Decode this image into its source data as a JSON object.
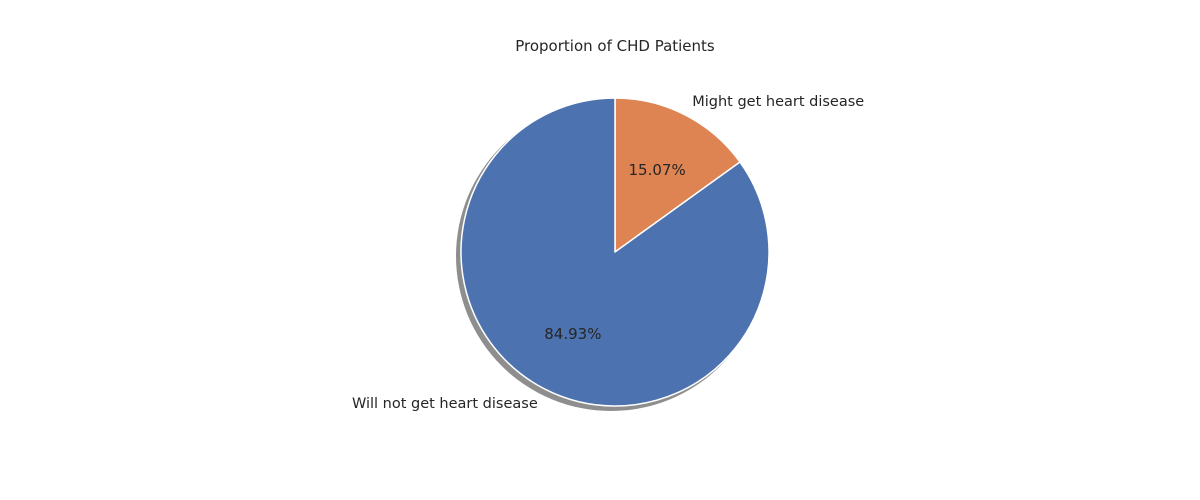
{
  "chart_data": {
    "type": "pie",
    "title": "Proportion of CHD Patients",
    "slices": [
      {
        "label": "Might get heart disease",
        "value": 15.07,
        "value_label": "15.07%",
        "color": "#dd8452"
      },
      {
        "label": "Will not get heart disease",
        "value": 84.93,
        "value_label": "84.93%",
        "color": "#4c72b0"
      }
    ],
    "start_angle": "top",
    "direction": "clockwise",
    "shadow": true,
    "edge_color": "#ffffff"
  }
}
